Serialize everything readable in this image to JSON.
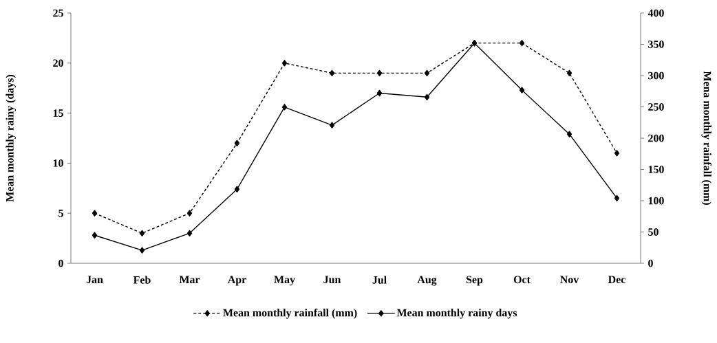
{
  "chart_data": {
    "type": "line",
    "categories": [
      "Jan",
      "Feb",
      "Mar",
      "Apr",
      "May",
      "Jun",
      "Jul",
      "Aug",
      "Sep",
      "Oct",
      "Nov",
      "Dec"
    ],
    "ylabel": "Mean monthly rainy (days)",
    "y2label": "Mena monthly rainfall (mm)",
    "ylim": [
      0,
      25
    ],
    "yticks": [
      0,
      5,
      10,
      15,
      20,
      25
    ],
    "y2lim": [
      0,
      400
    ],
    "y2ticks": [
      0,
      50,
      100,
      150,
      200,
      250,
      300,
      350,
      400
    ],
    "legend": "bottom",
    "marker": "diamond",
    "grid": false,
    "series": [
      {
        "name": "Mean monthly rainfall (mm)",
        "color": "#000000",
        "axis": "y2",
        "line_style": "dashed",
        "values": [
          80,
          48,
          80,
          192,
          320,
          304,
          304,
          304,
          352,
          352,
          304,
          176
        ]
      },
      {
        "name": "Mean monthly rainy days",
        "color": "#000000",
        "line_style": "solid",
        "values": [
          2.8,
          1.3,
          3.0,
          7.4,
          15.6,
          13.8,
          17.0,
          16.6,
          22.0,
          17.3,
          12.9,
          6.5
        ]
      }
    ]
  }
}
